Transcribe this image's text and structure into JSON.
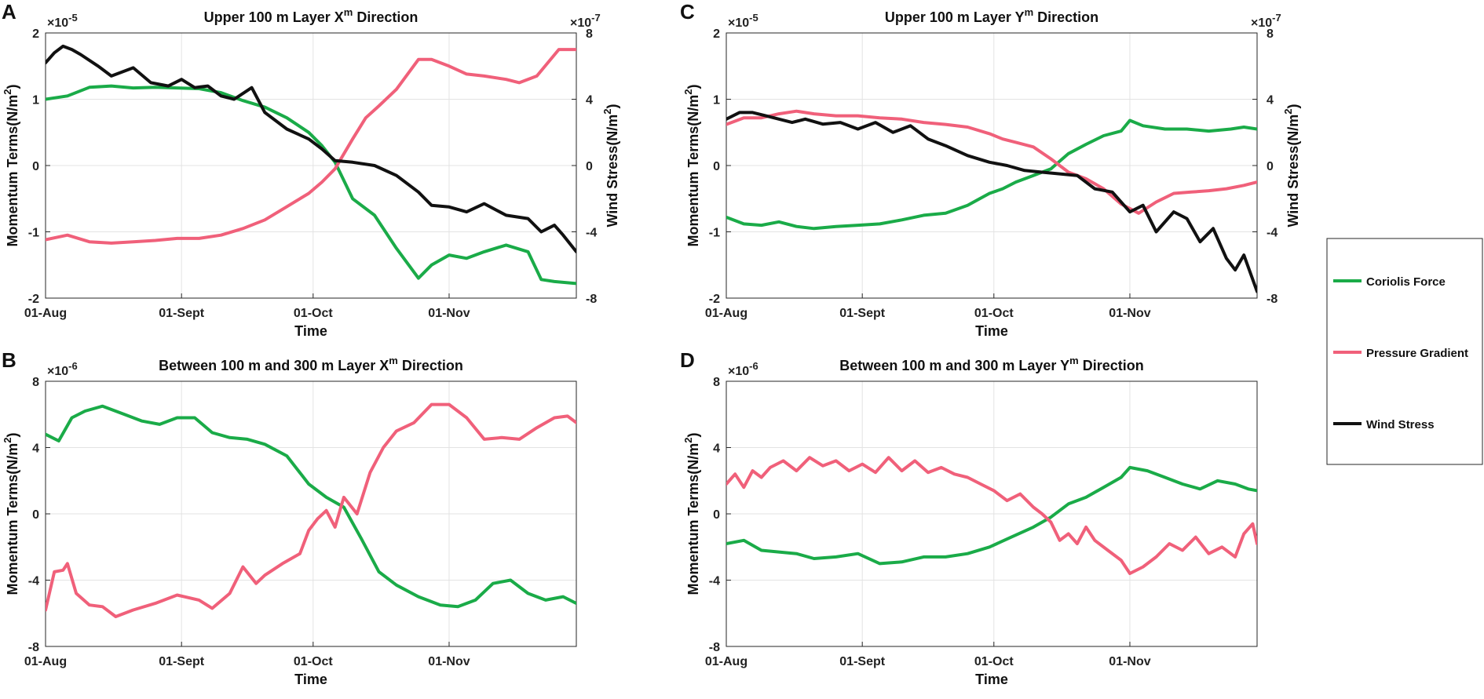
{
  "chart_data": [
    {
      "panel": "A",
      "type": "line",
      "title": "Upper 100 m Layer X",
      "title_sup": "m",
      "title_suffix": " Direction",
      "xlabel": "Time",
      "ylabel": "Momentum Terms(N/m",
      "ylabel_sup": "2",
      "ylabel_end": ")",
      "y_exponent": "×10",
      "y_exponent_power": "-5",
      "ylim": [
        -2,
        2
      ],
      "yticks": [
        -2,
        -1,
        0,
        1,
        2
      ],
      "y2label": "Wind Stress(N/m",
      "y2label_sup": "2",
      "y2label_end": ")",
      "y2_exponent": "×10",
      "y2_exponent_power": "-7",
      "y2lim": [
        -8,
        8
      ],
      "y2ticks": [
        -8,
        -4,
        0,
        4,
        8
      ],
      "xlim": [
        0,
        121
      ],
      "xticks": [
        0,
        31,
        61,
        92
      ],
      "xticklabels": [
        "01-Aug",
        "01-Sept",
        "01-Oct",
        "01-Nov"
      ],
      "series": [
        {
          "name": "Coriolis Force",
          "axis": "left",
          "x": [
            0,
            5,
            10,
            15,
            20,
            25,
            30,
            35,
            40,
            45,
            50,
            55,
            60,
            63,
            66,
            70,
            75,
            80,
            85,
            88,
            92,
            96,
            100,
            105,
            110,
            113,
            116,
            121
          ],
          "values": [
            1.0,
            1.05,
            1.18,
            1.2,
            1.17,
            1.18,
            1.17,
            1.16,
            1.1,
            0.98,
            0.88,
            0.72,
            0.5,
            0.3,
            0.05,
            -0.5,
            -0.75,
            -1.25,
            -1.7,
            -1.5,
            -1.35,
            -1.4,
            -1.3,
            -1.2,
            -1.3,
            -1.72,
            -1.75,
            -1.78
          ]
        },
        {
          "name": "Pressure Gradient",
          "axis": "left",
          "x": [
            0,
            5,
            10,
            15,
            20,
            25,
            30,
            35,
            40,
            45,
            50,
            55,
            60,
            63,
            66,
            70,
            73,
            76,
            80,
            85,
            88,
            92,
            96,
            100,
            105,
            108,
            112,
            117,
            121
          ],
          "values": [
            -1.12,
            -1.05,
            -1.15,
            -1.17,
            -1.15,
            -1.13,
            -1.1,
            -1.1,
            -1.05,
            -0.95,
            -0.82,
            -0.62,
            -0.42,
            -0.25,
            -0.05,
            0.4,
            0.72,
            0.9,
            1.15,
            1.6,
            1.6,
            1.5,
            1.38,
            1.35,
            1.3,
            1.25,
            1.35,
            1.75,
            1.75
          ]
        },
        {
          "name": "Wind Stress",
          "axis": "right",
          "x": [
            0,
            2,
            4,
            6,
            8,
            12,
            15,
            20,
            24,
            28,
            31,
            34,
            37,
            40,
            43,
            47,
            50,
            55,
            60,
            63,
            66,
            70,
            75,
            80,
            85,
            88,
            92,
            96,
            100,
            105,
            110,
            113,
            116,
            118,
            121
          ],
          "values": [
            6.2,
            6.8,
            7.2,
            7.0,
            6.7,
            6.0,
            5.4,
            5.9,
            5.0,
            4.8,
            5.2,
            4.7,
            4.8,
            4.2,
            4.0,
            4.7,
            3.2,
            2.2,
            1.6,
            1.0,
            0.3,
            0.2,
            0.0,
            -0.6,
            -1.6,
            -2.4,
            -2.5,
            -2.8,
            -2.3,
            -3.0,
            -3.2,
            -4.0,
            -3.6,
            -4.2,
            -5.2
          ]
        }
      ]
    },
    {
      "panel": "B",
      "type": "line",
      "title": "Between 100 m and 300 m Layer X",
      "title_sup": "m",
      "title_suffix": " Direction",
      "xlabel": "Time",
      "ylabel": "Momentum Terms(N/m",
      "ylabel_sup": "2",
      "ylabel_end": ")",
      "y_exponent": "×10",
      "y_exponent_power": "-6",
      "ylim": [
        -8,
        8
      ],
      "yticks": [
        -8,
        -4,
        0,
        4,
        8
      ],
      "xlim": [
        0,
        121
      ],
      "xticks": [
        0,
        31,
        61,
        92
      ],
      "xticklabels": [
        "01-Aug",
        "01-Sept",
        "01-Oct",
        "01-Nov"
      ],
      "series": [
        {
          "name": "Coriolis Force",
          "axis": "left",
          "x": [
            0,
            3,
            6,
            9,
            13,
            18,
            22,
            26,
            30,
            34,
            38,
            42,
            46,
            50,
            55,
            60,
            64,
            68,
            72,
            76,
            80,
            85,
            90,
            94,
            98,
            102,
            106,
            110,
            114,
            118,
            121
          ],
          "values": [
            4.8,
            4.4,
            5.8,
            6.2,
            6.5,
            6.0,
            5.6,
            5.4,
            5.8,
            5.8,
            4.9,
            4.6,
            4.5,
            4.2,
            3.5,
            1.8,
            1.0,
            0.4,
            -1.5,
            -3.5,
            -4.3,
            -5.0,
            -5.5,
            -5.6,
            -5.2,
            -4.2,
            -4.0,
            -4.8,
            -5.2,
            -5.0,
            -5.4
          ]
        },
        {
          "name": "Pressure Gradient",
          "axis": "left",
          "x": [
            0,
            2,
            4,
            5,
            7,
            10,
            13,
            16,
            20,
            25,
            30,
            35,
            38,
            42,
            45,
            48,
            50,
            54,
            58,
            60,
            62,
            64,
            66,
            68,
            71,
            74,
            77,
            80,
            84,
            88,
            92,
            96,
            100,
            104,
            108,
            112,
            116,
            119,
            121
          ],
          "values": [
            -5.8,
            -3.5,
            -3.4,
            -3.0,
            -4.8,
            -5.5,
            -5.6,
            -6.2,
            -5.8,
            -5.4,
            -4.9,
            -5.2,
            -5.7,
            -4.8,
            -3.2,
            -4.2,
            -3.7,
            -3.0,
            -2.4,
            -1.0,
            -0.3,
            0.2,
            -0.8,
            1.0,
            0.0,
            2.5,
            4.0,
            5.0,
            5.5,
            6.6,
            6.6,
            5.8,
            4.5,
            4.6,
            4.5,
            5.2,
            5.8,
            5.9,
            5.5
          ]
        }
      ]
    },
    {
      "panel": "C",
      "type": "line",
      "title": "Upper 100 m Layer Y",
      "title_sup": "m",
      "title_suffix": " Direction",
      "xlabel": "Time",
      "ylabel": "Momentum Terms(N/m",
      "ylabel_sup": "2",
      "ylabel_end": ")",
      "y_exponent": "×10",
      "y_exponent_power": "-5",
      "ylim": [
        -2,
        2
      ],
      "yticks": [
        -2,
        -1,
        0,
        1,
        2
      ],
      "y2label": "Wind Stress(N/m",
      "y2label_sup": "2",
      "y2label_end": ")",
      "y2_exponent": "×10",
      "y2_exponent_power": "-7",
      "y2lim": [
        -8,
        8
      ],
      "y2ticks": [
        -8,
        -4,
        0,
        4,
        8
      ],
      "xlim": [
        0,
        121
      ],
      "xticks": [
        0,
        31,
        61,
        92
      ],
      "xticklabels": [
        "01-Aug",
        "01-Sept",
        "01-Oct",
        "01-Nov"
      ],
      "series": [
        {
          "name": "Coriolis Force",
          "axis": "left",
          "x": [
            0,
            4,
            8,
            12,
            16,
            20,
            25,
            30,
            35,
            40,
            45,
            50,
            55,
            60,
            63,
            66,
            70,
            74,
            78,
            82,
            86,
            90,
            92,
            95,
            100,
            105,
            110,
            115,
            118,
            121
          ],
          "values": [
            -0.78,
            -0.88,
            -0.9,
            -0.85,
            -0.92,
            -0.95,
            -0.92,
            -0.9,
            -0.88,
            -0.82,
            -0.75,
            -0.72,
            -0.6,
            -0.42,
            -0.35,
            -0.25,
            -0.15,
            -0.05,
            0.18,
            0.32,
            0.45,
            0.52,
            0.68,
            0.6,
            0.55,
            0.55,
            0.52,
            0.55,
            0.58,
            0.55
          ]
        },
        {
          "name": "Pressure Gradient",
          "axis": "left",
          "x": [
            0,
            4,
            8,
            12,
            16,
            20,
            25,
            30,
            35,
            40,
            45,
            50,
            55,
            60,
            63,
            66,
            70,
            74,
            78,
            82,
            86,
            90,
            94,
            98,
            102,
            106,
            110,
            114,
            118,
            121
          ],
          "values": [
            0.62,
            0.72,
            0.72,
            0.78,
            0.82,
            0.78,
            0.75,
            0.75,
            0.72,
            0.7,
            0.65,
            0.62,
            0.58,
            0.48,
            0.4,
            0.35,
            0.28,
            0.1,
            -0.1,
            -0.2,
            -0.35,
            -0.58,
            -0.72,
            -0.55,
            -0.42,
            -0.4,
            -0.38,
            -0.35,
            -0.3,
            -0.25
          ]
        },
        {
          "name": "Wind Stress",
          "axis": "right",
          "x": [
            0,
            3,
            6,
            9,
            12,
            15,
            18,
            22,
            26,
            30,
            34,
            38,
            42,
            46,
            50,
            55,
            60,
            64,
            68,
            72,
            76,
            80,
            84,
            88,
            92,
            95,
            98,
            102,
            105,
            108,
            111,
            114,
            116,
            118,
            121
          ],
          "values": [
            2.8,
            3.2,
            3.2,
            3.0,
            2.8,
            2.6,
            2.8,
            2.5,
            2.6,
            2.2,
            2.6,
            2.0,
            2.4,
            1.6,
            1.2,
            0.6,
            0.2,
            0.0,
            -0.3,
            -0.4,
            -0.5,
            -0.6,
            -1.4,
            -1.6,
            -2.8,
            -2.4,
            -4.0,
            -2.8,
            -3.2,
            -4.6,
            -3.8,
            -5.6,
            -6.3,
            -5.4,
            -7.6
          ]
        }
      ]
    },
    {
      "panel": "D",
      "type": "line",
      "title": "Between 100 m and 300 m Layer Y",
      "title_sup": "m",
      "title_suffix": " Direction",
      "xlabel": "Time",
      "ylabel": "Momentum Terms(N/m",
      "ylabel_sup": "2",
      "ylabel_end": ")",
      "y_exponent": "×10",
      "y_exponent_power": "-6",
      "ylim": [
        -8,
        8
      ],
      "yticks": [
        -8,
        -4,
        0,
        4,
        8
      ],
      "xlim": [
        0,
        121
      ],
      "xticks": [
        0,
        31,
        61,
        92
      ],
      "xticklabels": [
        "01-Aug",
        "01-Sept",
        "01-Oct",
        "01-Nov"
      ],
      "series": [
        {
          "name": "Coriolis Force",
          "axis": "left",
          "x": [
            0,
            4,
            8,
            12,
            16,
            20,
            25,
            30,
            35,
            40,
            45,
            50,
            55,
            60,
            65,
            70,
            74,
            78,
            82,
            86,
            90,
            92,
            96,
            100,
            104,
            108,
            112,
            116,
            119,
            121
          ],
          "values": [
            -1.8,
            -1.6,
            -2.2,
            -2.3,
            -2.4,
            -2.7,
            -2.6,
            -2.4,
            -3.0,
            -2.9,
            -2.6,
            -2.6,
            -2.4,
            -2.0,
            -1.4,
            -0.8,
            -0.2,
            0.6,
            1.0,
            1.6,
            2.2,
            2.8,
            2.6,
            2.2,
            1.8,
            1.5,
            2.0,
            1.8,
            1.5,
            1.4
          ]
        },
        {
          "name": "Pressure Gradient",
          "axis": "left",
          "x": [
            0,
            2,
            4,
            6,
            8,
            10,
            13,
            16,
            19,
            22,
            25,
            28,
            31,
            34,
            37,
            40,
            43,
            46,
            49,
            52,
            55,
            58,
            61,
            64,
            67,
            70,
            72,
            74,
            76,
            78,
            80,
            82,
            84,
            87,
            90,
            92,
            95,
            98,
            101,
            104,
            107,
            110,
            113,
            116,
            118,
            120,
            121
          ],
          "values": [
            1.8,
            2.4,
            1.6,
            2.6,
            2.2,
            2.8,
            3.2,
            2.6,
            3.4,
            2.9,
            3.2,
            2.6,
            3.0,
            2.5,
            3.4,
            2.6,
            3.2,
            2.5,
            2.8,
            2.4,
            2.2,
            1.8,
            1.4,
            0.8,
            1.2,
            0.4,
            0.0,
            -0.5,
            -1.6,
            -1.2,
            -1.8,
            -0.8,
            -1.6,
            -2.2,
            -2.8,
            -3.6,
            -3.2,
            -2.6,
            -1.8,
            -2.2,
            -1.4,
            -2.4,
            -2.0,
            -2.6,
            -1.2,
            -0.6,
            -1.8
          ]
        }
      ]
    }
  ],
  "legend": {
    "items": [
      {
        "label": "Coriolis Force",
        "color": "#1aab48"
      },
      {
        "label": "Pressure Gradient",
        "color": "#f0607a"
      },
      {
        "label": "Wind Stress",
        "color": "#111111"
      }
    ]
  },
  "colors": {
    "Coriolis Force": "#1aab48",
    "Pressure Gradient": "#f0607a",
    "Wind Stress": "#111111"
  }
}
